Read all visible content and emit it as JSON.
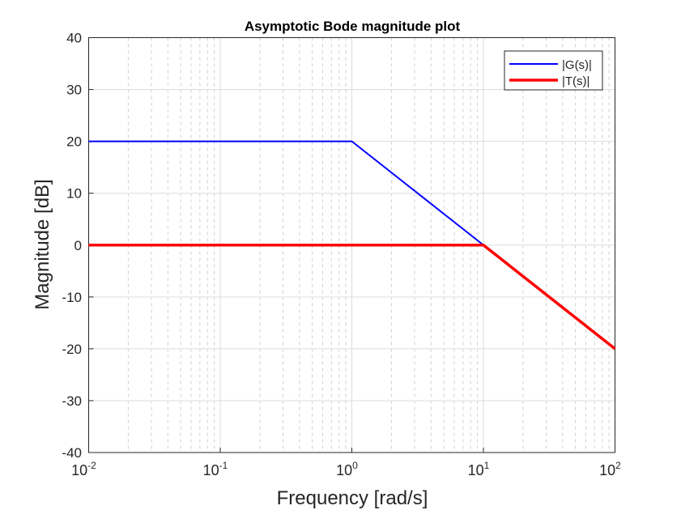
{
  "chart_data": {
    "type": "line",
    "title": "Asymptotic Bode magnitude plot",
    "xlabel": "Frequency [rad/s]",
    "ylabel": "Magnitude [dB]",
    "xscale": "log",
    "xlim": [
      0.01,
      100
    ],
    "ylim": [
      -40,
      40
    ],
    "xticks": [
      0.01,
      0.1,
      1,
      10,
      100
    ],
    "xtick_labels": [
      {
        "base": "10",
        "exp": "-2"
      },
      {
        "base": "10",
        "exp": "-1"
      },
      {
        "base": "10",
        "exp": "0"
      },
      {
        "base": "10",
        "exp": "1"
      },
      {
        "base": "10",
        "exp": "2"
      }
    ],
    "yticks": [
      -40,
      -30,
      -20,
      -10,
      0,
      10,
      20,
      30,
      40
    ],
    "ytick_labels": [
      "-40",
      "-30",
      "-20",
      "-10",
      "0",
      "10",
      "20",
      "30",
      "40"
    ],
    "grid": true,
    "legend_position": "top-right",
    "series": [
      {
        "name": "|G(s)|",
        "color": "#0000ff",
        "x": [
          0.01,
          1,
          10,
          100
        ],
        "y": [
          20,
          20,
          0,
          -20
        ]
      },
      {
        "name": "|T(s)|",
        "color": "#ff0000",
        "x": [
          0.01,
          10,
          100
        ],
        "y": [
          0,
          0,
          -20
        ]
      }
    ]
  }
}
